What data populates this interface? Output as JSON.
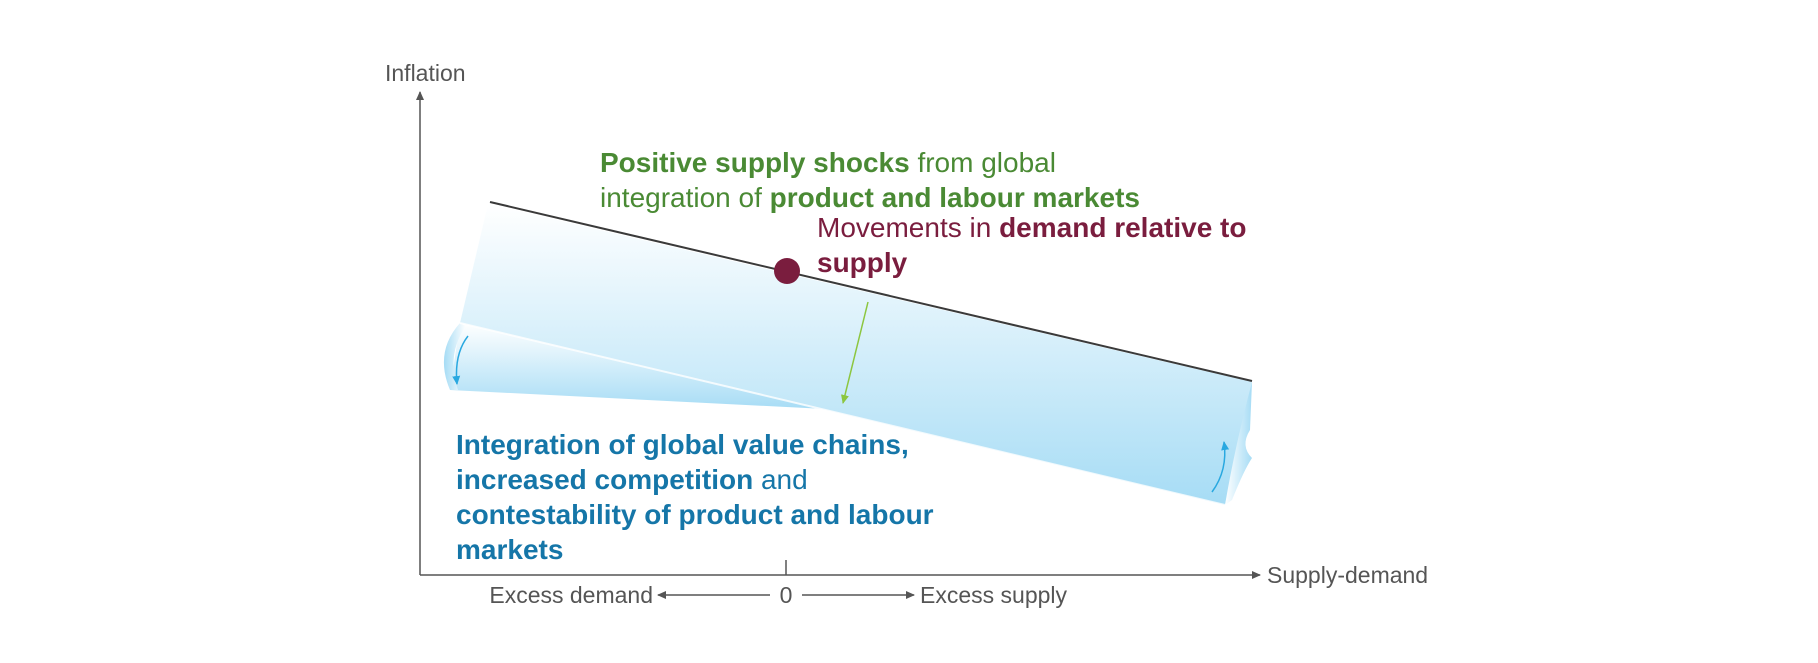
{
  "axes": {
    "y_label": "Inflation",
    "x_label": "Supply-demand",
    "origin_label": "0",
    "left_label": "Excess demand",
    "right_label": "Excess supply"
  },
  "annotations": {
    "supply_shocks": {
      "line1_bold": "Positive supply shocks",
      "line1_rest": " from global",
      "line2_plain": "integration of ",
      "line2_bold": "product and labour markets"
    },
    "demand": {
      "line1_plain": "Movements in ",
      "line1_bold": "demand relative to",
      "line2_bold": "supply"
    },
    "integration": {
      "line1_bold": "Integration of global value chains,",
      "line2_bold": "increased competition",
      "line2_rest": " and",
      "line3_bold": "contestability of product and labour",
      "line4_bold": "markets"
    }
  },
  "colors": {
    "axis": "#555555",
    "curve": "#3a3a3a",
    "point": "#7a1d3e",
    "green": "#4a8a34",
    "maroon": "#7a1d3e",
    "blue": "#1576a8",
    "arrow_green": "#8cc63f",
    "arrow_blue": "#29a8e0",
    "band_light": "#ffffff",
    "band_dark": "#a6dcf5"
  }
}
